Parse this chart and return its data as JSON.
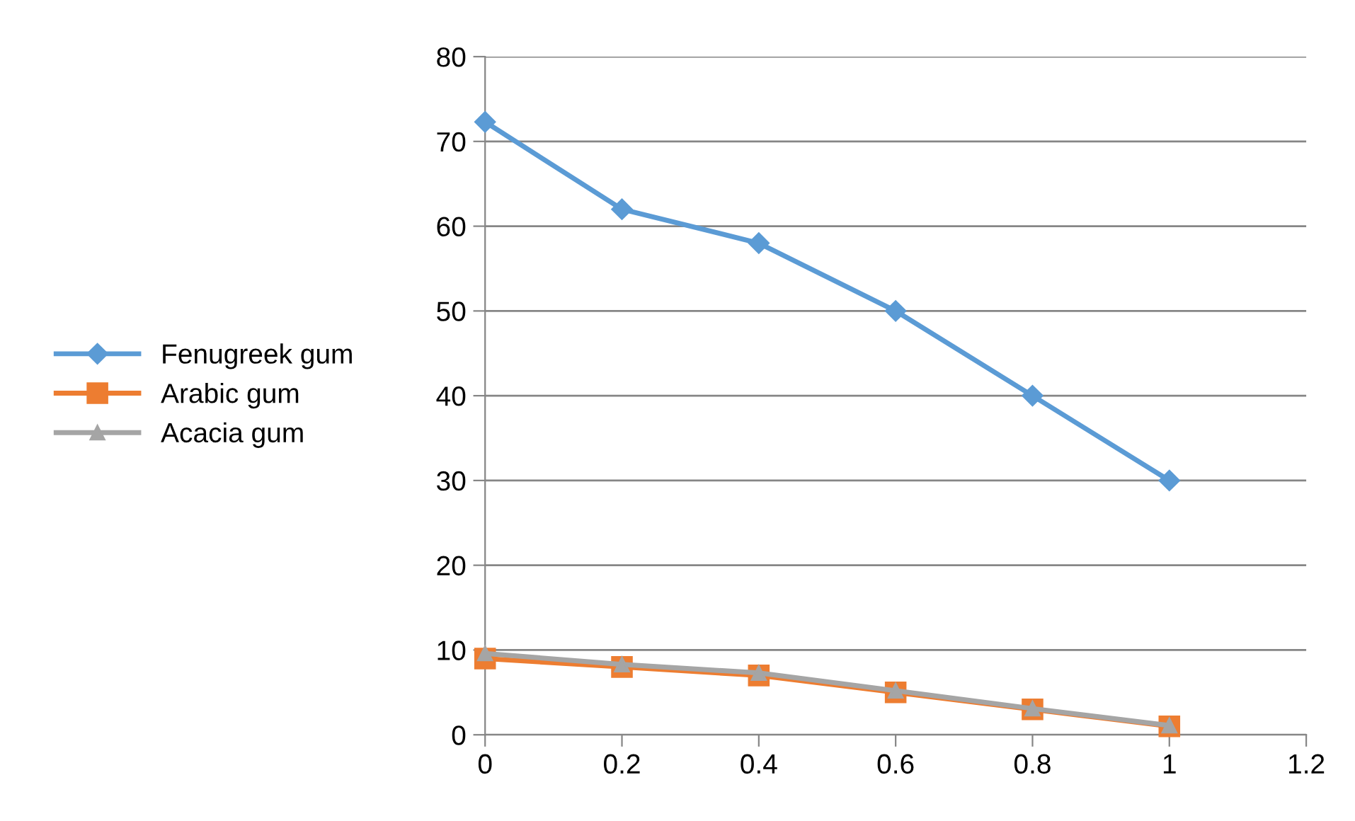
{
  "chart_data": {
    "type": "line",
    "x": [
      0,
      0.2,
      0.4,
      0.6,
      0.8,
      1
    ],
    "series": [
      {
        "name": "Fenugreek gum",
        "color": "#5b9bd5",
        "marker": "diamond",
        "values": [
          72.3,
          62,
          58,
          50,
          40,
          30
        ]
      },
      {
        "name": "Arabic gum",
        "color": "#ed7d31",
        "marker": "square",
        "values": [
          9,
          8,
          7,
          5,
          3,
          1
        ]
      },
      {
        "name": "Acacia gum",
        "color": "#a5a5a5",
        "marker": "triangle",
        "values": [
          9.6,
          8.3,
          7.3,
          5.2,
          3.1,
          1.1
        ]
      }
    ],
    "xlim": [
      0,
      1.2
    ],
    "xticks": [
      0,
      0.2,
      0.4,
      0.6,
      0.8,
      1,
      1.2
    ],
    "ylim": [
      0,
      80
    ],
    "yticks": [
      0,
      10,
      20,
      30,
      40,
      50,
      60,
      70,
      80
    ],
    "grid": "y",
    "legend": "left",
    "line_style": "solid"
  }
}
